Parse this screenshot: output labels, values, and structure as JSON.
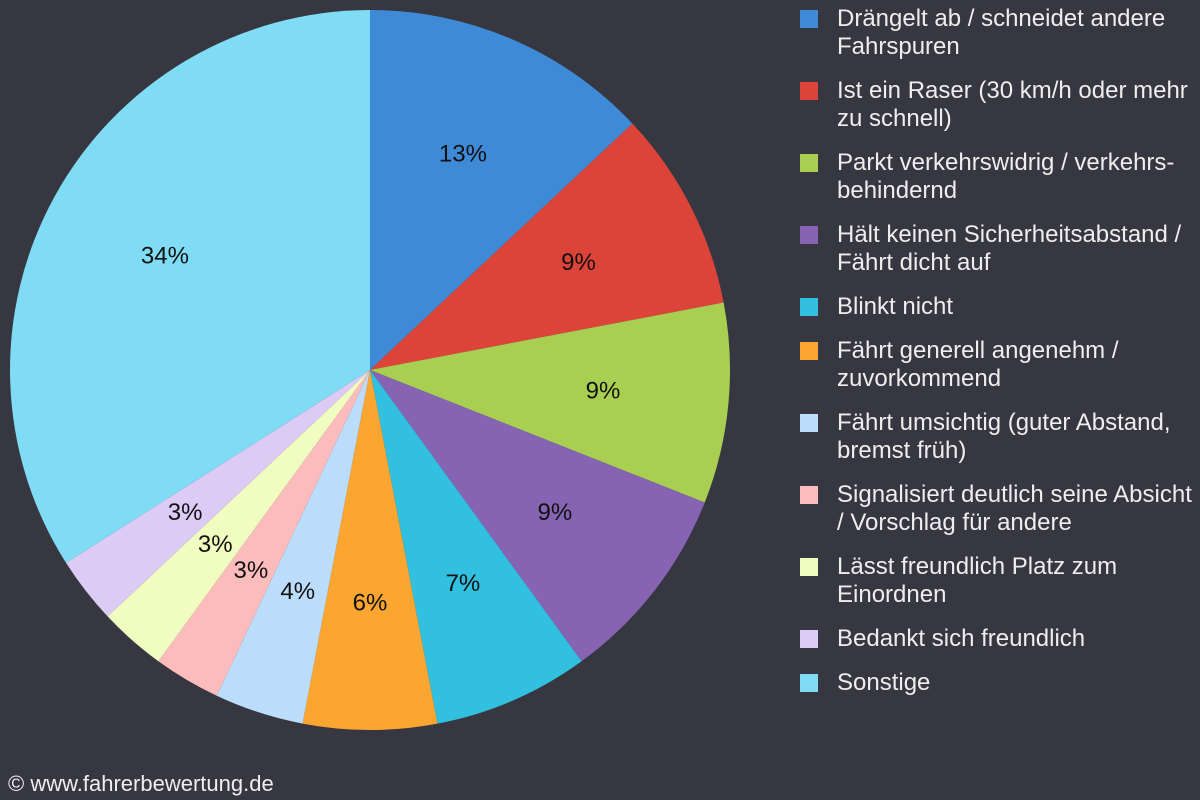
{
  "chart_data": {
    "type": "pie",
    "categories": [
      "Drängelt ab / schneidet andere Fahrspuren",
      "Ist ein Raser (30 km/h oder mehr zu schnell)",
      "Parkt verkehrswidrig / verkehrs-behindernd",
      "Hält keinen Sicherheitsabstand / Fährt dicht auf",
      "Blinkt nicht",
      "Fährt generell angenehm / zuvorkommend",
      "Fährt umsichtig (guter Abstand, bremst früh)",
      "Signalisiert deutlich seine Absicht / Vorschlag für andere",
      "Lässt freundlich Platz zum Einordnen",
      "Bedankt sich freundlich",
      "Sonstige"
    ],
    "values": [
      13,
      9,
      9,
      9,
      7,
      6,
      4,
      3,
      3,
      3,
      34
    ],
    "value_labels": [
      "13%",
      "9%",
      "9%",
      "9%",
      "7%",
      "6%",
      "4%",
      "3%",
      "3%",
      "3%",
      "34%"
    ],
    "colors": [
      "#3e8ad6",
      "#dc4439",
      "#a8cf52",
      "#8664b3",
      "#31c0e0",
      "#fba631",
      "#bcdcfb",
      "#fdbcbc",
      "#f1fdc0",
      "#dccbf5",
      "#80dcf4"
    ],
    "legend": "right"
  },
  "footer": "© www.fahrerbewertung.de"
}
